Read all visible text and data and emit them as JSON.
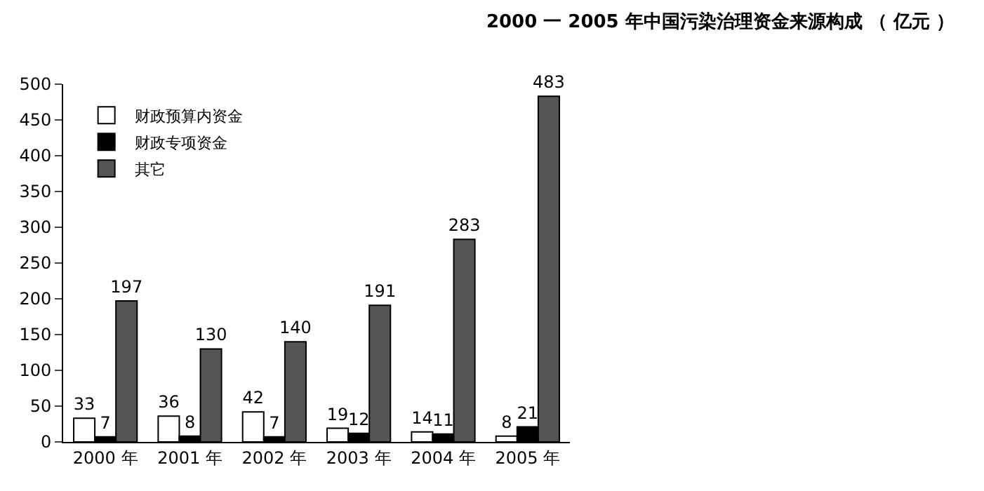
{
  "chart_data": {
    "type": "bar",
    "title": "2000 一 2005 年中国污染治理资金来源构成 （ 亿元 ）",
    "categories": [
      "2000 年",
      "2001 年",
      "2002 年",
      "2003 年",
      "2004 年",
      "2005 年"
    ],
    "series": [
      {
        "name": "财政预算内资金",
        "color": "#ffffff",
        "values": [
          33,
          36,
          42,
          19,
          14,
          8
        ]
      },
      {
        "name": "财政专项资金",
        "color": "#000000",
        "values": [
          7,
          8,
          7,
          12,
          11,
          21
        ]
      },
      {
        "name": "其它",
        "color": "#555555",
        "values": [
          197,
          130,
          140,
          191,
          283,
          483
        ]
      }
    ],
    "ylim": [
      0,
      500
    ],
    "yticks": [
      0,
      50,
      100,
      150,
      200,
      250,
      300,
      350,
      400,
      450,
      500
    ],
    "data_labels": true,
    "legend": "top left"
  }
}
